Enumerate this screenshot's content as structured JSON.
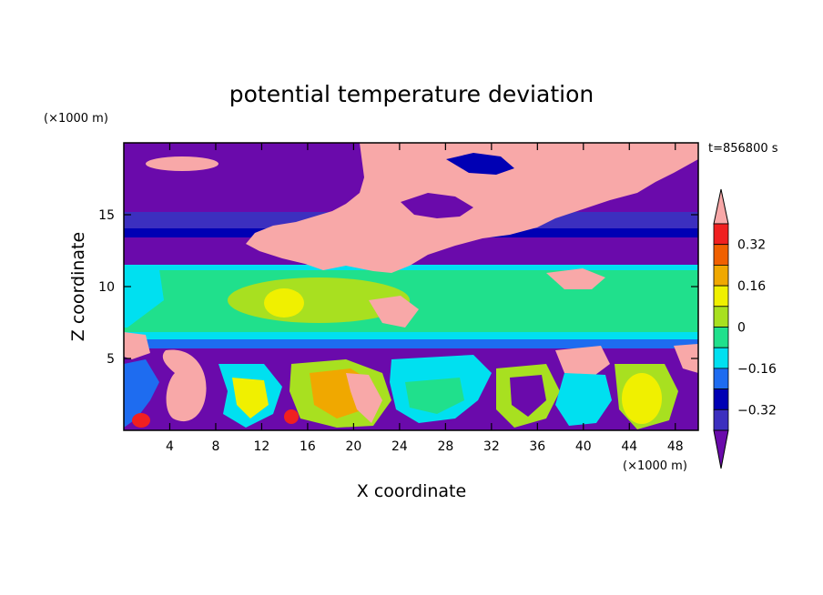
{
  "chart_data": {
    "type": "heatmap",
    "title": "potential temperature deviation",
    "xlabel": "X coordinate",
    "ylabel": "Z coordinate",
    "x_unit": "(×1000 m)",
    "y_unit": "(×1000 m)",
    "time_label": "t=856800 s",
    "xlim": [
      0,
      50
    ],
    "ylim": [
      0,
      20
    ],
    "x_ticks": [
      4,
      8,
      12,
      16,
      20,
      24,
      28,
      32,
      36,
      40,
      44,
      48
    ],
    "y_ticks": [
      5,
      10,
      15
    ],
    "colorbar": {
      "levels": [
        -0.4,
        -0.32,
        -0.24,
        -0.16,
        -0.08,
        0,
        0.08,
        0.16,
        0.24,
        0.32,
        0.4
      ],
      "tick_labels": [
        "0.32",
        "0.16",
        "0",
        "−0.16",
        "−0.32"
      ],
      "tick_values": [
        0.32,
        0.16,
        0,
        -0.16,
        -0.32
      ],
      "colors": [
        "#6a0aab",
        "#3c2fbf",
        "#0000b4",
        "#1e6cf0",
        "#00e0f0",
        "#20e08c",
        "#a8e020",
        "#f0f000",
        "#f0a800",
        "#f06000",
        "#f02020",
        "#f8a8a8"
      ],
      "extend": "both"
    },
    "field_note_bands": [
      {
        "z_range": [
          15,
          19.5
        ],
        "value": -0.4,
        "color": "#6a0aab"
      },
      {
        "z_range": [
          14,
          15
        ],
        "value": -0.32,
        "color": "#3c2fbf"
      },
      {
        "z_range": [
          13,
          14
        ],
        "value": -0.24,
        "color": "#0000b4"
      },
      {
        "z_range": [
          11.2,
          13
        ],
        "value": -0.4,
        "color": "#6a0aab"
      },
      {
        "z_range": [
          6.5,
          11.2
        ],
        "value": 0,
        "color": "#20e08c"
      },
      {
        "z_range": [
          0,
          6.5
        ],
        "value": -0.4,
        "color": "#6a0aab"
      }
    ]
  }
}
